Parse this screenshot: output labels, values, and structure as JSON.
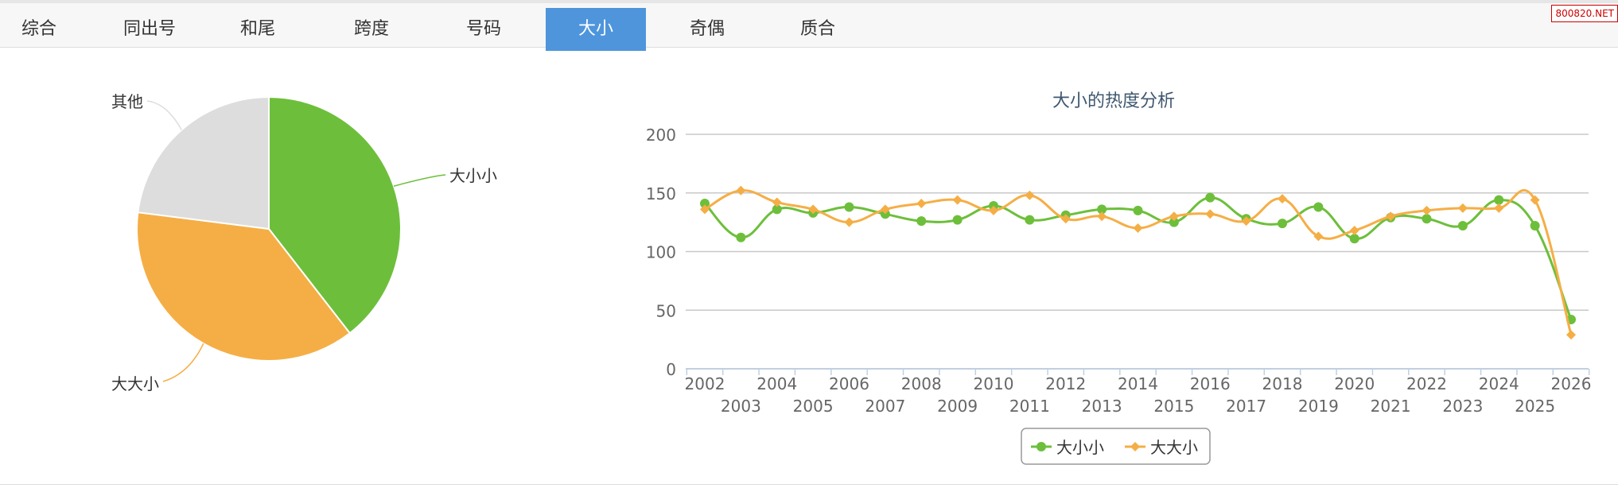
{
  "tabs": [
    {
      "label": "综合"
    },
    {
      "label": "同出号"
    },
    {
      "label": "和尾"
    },
    {
      "label": "跨度"
    },
    {
      "label": "号码"
    },
    {
      "label": "大小",
      "active": true
    },
    {
      "label": "奇偶"
    },
    {
      "label": "质合"
    }
  ],
  "watermark": "800820.NET",
  "colors": {
    "green": "#6dbf3b",
    "orange": "#f5ae45",
    "grey": "#dddddd",
    "active_tab": "#4e95dc"
  },
  "chart_data": [
    {
      "type": "pie",
      "slices": [
        {
          "label": "大小小",
          "value": 39.5,
          "color": "#6dbf3b"
        },
        {
          "label": "大大小",
          "value": 37.5,
          "color": "#f5ae45"
        },
        {
          "label": "其他",
          "value": 23,
          "color": "#dddddd"
        }
      ]
    },
    {
      "type": "line",
      "title": "大小的热度分析",
      "ylim": [
        0,
        200
      ],
      "yticks": [
        0,
        50,
        100,
        150,
        200
      ],
      "grid": true,
      "legend": "bottom",
      "x": [
        "2002",
        "2003",
        "2004",
        "2005",
        "2006",
        "2007",
        "2008",
        "2009",
        "2010",
        "2011",
        "2012",
        "2013",
        "2014",
        "2015",
        "2016",
        "2017",
        "2018",
        "2019",
        "2020",
        "2021",
        "2022",
        "2023",
        "2024",
        "2025",
        "2026"
      ],
      "series": [
        {
          "name": "大小小",
          "color": "#6dbf3b",
          "marker": "circle",
          "values": [
            141,
            112,
            136,
            133,
            138,
            132,
            126,
            127,
            139,
            127,
            131,
            136,
            135,
            125,
            146,
            128,
            124,
            138,
            111,
            129,
            128,
            122,
            144,
            122,
            42
          ]
        },
        {
          "name": "大大小",
          "color": "#f5ae45",
          "marker": "diamond",
          "values": [
            136,
            152,
            142,
            136,
            125,
            136,
            141,
            144,
            135,
            148,
            128,
            130,
            120,
            130,
            132,
            126,
            145,
            113,
            118,
            130,
            135,
            137,
            137,
            144,
            29
          ]
        }
      ]
    }
  ]
}
